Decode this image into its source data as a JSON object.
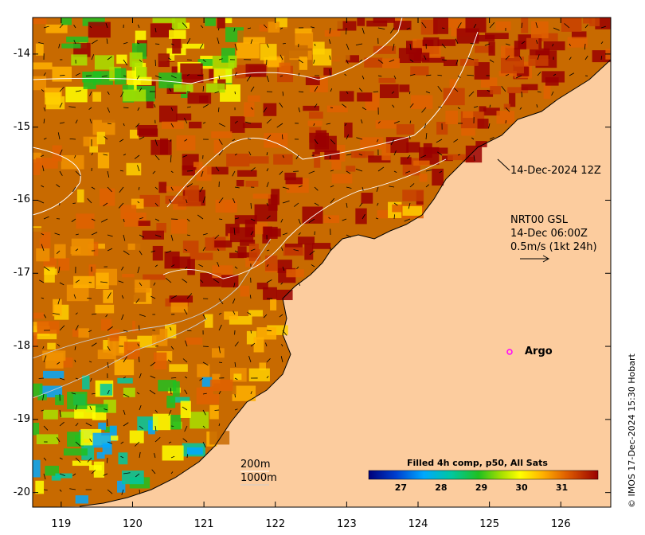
{
  "map": {
    "lon_ticks": [
      "119",
      "120",
      "121",
      "122",
      "123",
      "124",
      "125",
      "126"
    ],
    "lat_ticks": [
      "-14",
      "-15",
      "-16",
      "-17",
      "-18",
      "-19",
      "-20"
    ],
    "lon_range": [
      118.6,
      126.7
    ],
    "lat_range": [
      -20.2,
      -13.5
    ]
  },
  "annotations": {
    "date_label": "14-Dec-2024 12Z",
    "source_line1": "NRT00 GSL",
    "source_line2": "14-Dec 06:00Z",
    "source_line3": "0.5m/s (1kt 24h)",
    "argo_label": "Argo",
    "contour_label_1": "200m",
    "contour_label_2": "1000m"
  },
  "colorbar": {
    "title": "Filled 4h comp, p50, All Sats",
    "ticks": [
      "27",
      "28",
      "29",
      "30",
      "31"
    ],
    "range": [
      26.2,
      31.9
    ]
  },
  "credit": "© IMOS 17-Dec-2024 15:30 Hobart",
  "colors": {
    "land": "#fccc9e",
    "hot": "#9a0000",
    "cold": "#00007a"
  }
}
